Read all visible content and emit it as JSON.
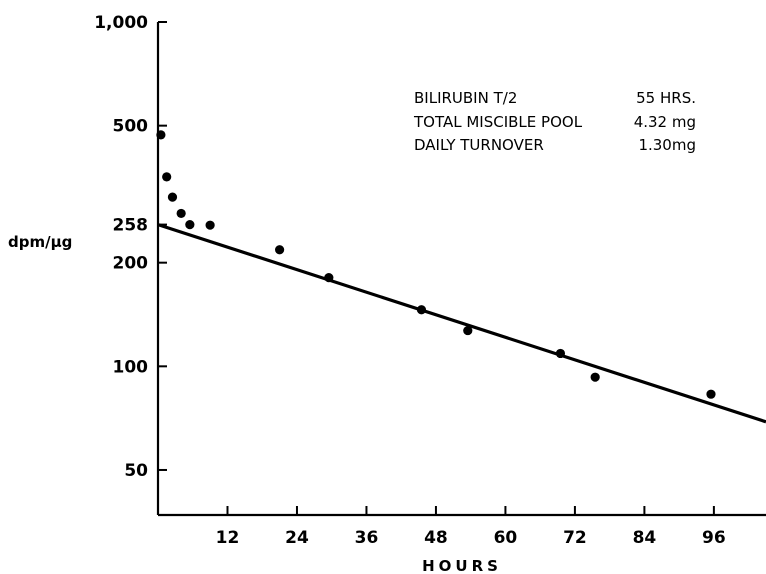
{
  "chart_data": {
    "type": "scatter",
    "xlabel": "HOURS",
    "ylabel": "dpm/µg",
    "yscale": "log",
    "xlim": [
      0,
      105
    ],
    "ylim": [
      37,
      1000
    ],
    "x_ticks": [
      12,
      24,
      36,
      48,
      60,
      72,
      84,
      96
    ],
    "x_tick_labels": [
      "12",
      "24",
      "36",
      "48",
      "60",
      "72",
      "84",
      "96"
    ],
    "y_ticks": [
      50,
      100,
      200,
      258,
      500,
      1000
    ],
    "y_tick_labels": [
      "50",
      "100",
      "200",
      "258",
      "500",
      "1,000"
    ],
    "grid": false,
    "points": [
      {
        "x": 0.5,
        "y": 470
      },
      {
        "x": 1.5,
        "y": 355
      },
      {
        "x": 2.5,
        "y": 310
      },
      {
        "x": 4,
        "y": 278
      },
      {
        "x": 5.5,
        "y": 258
      },
      {
        "x": 9,
        "y": 257
      },
      {
        "x": 21,
        "y": 218
      },
      {
        "x": 29.5,
        "y": 181
      },
      {
        "x": 45.5,
        "y": 146
      },
      {
        "x": 53.5,
        "y": 127
      },
      {
        "x": 69.5,
        "y": 109
      },
      {
        "x": 75.5,
        "y": 93
      },
      {
        "x": 95.5,
        "y": 83
      }
    ],
    "fit_line": {
      "x": [
        0,
        105
      ],
      "y": [
        258,
        69
      ]
    },
    "annotations": [
      {
        "label": "BILIRUBIN  T/2",
        "value": "55 HRS."
      },
      {
        "label": "TOTAL MISCIBLE POOL",
        "value": "4.32 mg"
      },
      {
        "label": "DAILY  TURNOVER",
        "value": "1.30mg"
      }
    ]
  }
}
